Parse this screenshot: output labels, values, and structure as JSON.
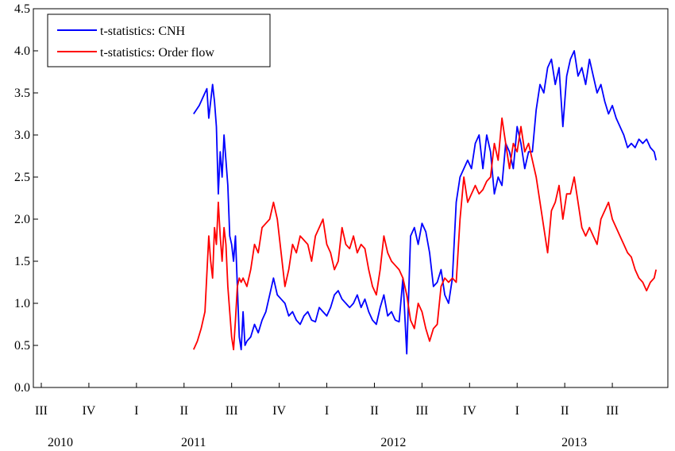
{
  "chart_data": {
    "type": "line",
    "title": "",
    "xlabel": "",
    "ylabel": "",
    "ylim": [
      0.0,
      4.5
    ],
    "yticks": [
      "0.0",
      "0.5",
      "1.0",
      "1.5",
      "2.0",
      "2.5",
      "3.0",
      "3.5",
      "4.0",
      "4.5"
    ],
    "xlim": [
      2010.5,
      2013.75
    ],
    "quarter_labels": [
      {
        "x": 2010.5,
        "label": "III"
      },
      {
        "x": 2010.75,
        "label": "IV"
      },
      {
        "x": 2011.0,
        "label": "I"
      },
      {
        "x": 2011.25,
        "label": "II"
      },
      {
        "x": 2011.5,
        "label": "III"
      },
      {
        "x": 2011.75,
        "label": "IV"
      },
      {
        "x": 2012.0,
        "label": "I"
      },
      {
        "x": 2012.25,
        "label": "II"
      },
      {
        "x": 2012.5,
        "label": "III"
      },
      {
        "x": 2012.75,
        "label": "IV"
      },
      {
        "x": 2013.0,
        "label": "I"
      },
      {
        "x": 2013.25,
        "label": "II"
      },
      {
        "x": 2013.5,
        "label": "III"
      }
    ],
    "year_labels": [
      {
        "x": 2010.6,
        "label": "2010"
      },
      {
        "x": 2011.3,
        "label": "2011"
      },
      {
        "x": 2012.35,
        "label": "2012"
      },
      {
        "x": 2013.3,
        "label": "2013"
      }
    ],
    "grid": false,
    "legend_position": "top-left",
    "series": [
      {
        "name": "t-statistics: CNH",
        "color": "#0000ff",
        "x": [
          2011.3,
          2011.33,
          2011.35,
          2011.37,
          2011.38,
          2011.4,
          2011.41,
          2011.42,
          2011.43,
          2011.44,
          2011.45,
          2011.46,
          2011.47,
          2011.48,
          2011.49,
          2011.5,
          2011.51,
          2011.52,
          2011.53,
          2011.54,
          2011.55,
          2011.56,
          2011.57,
          2011.58,
          2011.6,
          2011.62,
          2011.64,
          2011.66,
          2011.68,
          2011.7,
          2011.72,
          2011.74,
          2011.76,
          2011.78,
          2011.8,
          2011.82,
          2011.84,
          2011.86,
          2011.88,
          2011.9,
          2011.92,
          2011.94,
          2011.96,
          2011.98,
          2012.0,
          2012.02,
          2012.04,
          2012.06,
          2012.08,
          2012.1,
          2012.12,
          2012.14,
          2012.16,
          2012.18,
          2012.2,
          2012.22,
          2012.24,
          2012.26,
          2012.28,
          2012.3,
          2012.32,
          2012.34,
          2012.36,
          2012.38,
          2012.4,
          2012.42,
          2012.44,
          2012.46,
          2012.48,
          2012.5,
          2012.52,
          2012.54,
          2012.56,
          2012.58,
          2012.6,
          2012.62,
          2012.64,
          2012.66,
          2012.68,
          2012.7,
          2012.72,
          2012.74,
          2012.76,
          2012.78,
          2012.8,
          2012.82,
          2012.84,
          2012.86,
          2012.88,
          2012.9,
          2012.92,
          2012.94,
          2012.96,
          2012.98,
          2013.0,
          2013.02,
          2013.04,
          2013.06,
          2013.08,
          2013.1,
          2013.12,
          2013.14,
          2013.16,
          2013.18,
          2013.2,
          2013.22,
          2013.24,
          2013.26,
          2013.28,
          2013.3,
          2013.32,
          2013.34,
          2013.36,
          2013.38,
          2013.4,
          2013.42,
          2013.44,
          2013.46,
          2013.48,
          2013.5,
          2013.52,
          2013.54,
          2013.56,
          2013.58,
          2013.6,
          2013.62,
          2013.64,
          2013.66,
          2013.68,
          2013.7,
          2013.72,
          2013.73
        ],
        "y": [
          3.25,
          3.35,
          3.45,
          3.55,
          3.2,
          3.6,
          3.4,
          3.1,
          2.3,
          2.8,
          2.5,
          3.0,
          2.7,
          2.4,
          1.8,
          1.7,
          1.5,
          1.8,
          1.2,
          0.6,
          0.45,
          0.9,
          0.5,
          0.55,
          0.6,
          0.75,
          0.65,
          0.8,
          0.9,
          1.1,
          1.3,
          1.1,
          1.05,
          1.0,
          0.85,
          0.9,
          0.8,
          0.75,
          0.85,
          0.9,
          0.8,
          0.78,
          0.95,
          0.9,
          0.85,
          0.95,
          1.1,
          1.15,
          1.05,
          1.0,
          0.95,
          1.0,
          1.1,
          0.95,
          1.05,
          0.9,
          0.8,
          0.75,
          0.95,
          1.1,
          0.85,
          0.9,
          0.8,
          0.78,
          1.3,
          0.4,
          1.8,
          1.9,
          1.7,
          1.95,
          1.85,
          1.6,
          1.2,
          1.25,
          1.4,
          1.1,
          1.0,
          1.3,
          2.2,
          2.5,
          2.6,
          2.7,
          2.6,
          2.9,
          3.0,
          2.6,
          3.0,
          2.8,
          2.3,
          2.5,
          2.4,
          2.9,
          2.8,
          2.6,
          3.1,
          2.9,
          2.6,
          2.8,
          2.8,
          3.3,
          3.6,
          3.5,
          3.8,
          3.9,
          3.6,
          3.8,
          3.1,
          3.7,
          3.9,
          4.0,
          3.7,
          3.8,
          3.6,
          3.9,
          3.7,
          3.5,
          3.6,
          3.4,
          3.25,
          3.35,
          3.2,
          3.1,
          3.0,
          2.85,
          2.9,
          2.85,
          2.95,
          2.9,
          2.95,
          2.85,
          2.8,
          2.7
        ]
      },
      {
        "name": "t-statistics: Order flow",
        "color": "#ff0000",
        "x": [
          2011.3,
          2011.32,
          2011.34,
          2011.36,
          2011.38,
          2011.39,
          2011.4,
          2011.41,
          2011.42,
          2011.43,
          2011.44,
          2011.45,
          2011.46,
          2011.47,
          2011.48,
          2011.49,
          2011.5,
          2011.51,
          2011.52,
          2011.53,
          2011.54,
          2011.55,
          2011.56,
          2011.58,
          2011.6,
          2011.62,
          2011.64,
          2011.66,
          2011.68,
          2011.7,
          2011.72,
          2011.74,
          2011.76,
          2011.78,
          2011.8,
          2011.82,
          2011.84,
          2011.86,
          2011.88,
          2011.9,
          2011.92,
          2011.94,
          2011.96,
          2011.98,
          2012.0,
          2012.02,
          2012.04,
          2012.06,
          2012.08,
          2012.1,
          2012.12,
          2012.14,
          2012.16,
          2012.18,
          2012.2,
          2012.22,
          2012.24,
          2012.26,
          2012.28,
          2012.3,
          2012.32,
          2012.34,
          2012.36,
          2012.38,
          2012.4,
          2012.42,
          2012.44,
          2012.46,
          2012.48,
          2012.5,
          2012.52,
          2012.54,
          2012.56,
          2012.58,
          2012.6,
          2012.62,
          2012.64,
          2012.66,
          2012.68,
          2012.7,
          2012.72,
          2012.74,
          2012.76,
          2012.78,
          2012.8,
          2012.82,
          2012.84,
          2012.86,
          2012.88,
          2012.9,
          2012.92,
          2012.94,
          2012.96,
          2012.98,
          2013.0,
          2013.02,
          2013.04,
          2013.06,
          2013.08,
          2013.1,
          2013.12,
          2013.14,
          2013.16,
          2013.18,
          2013.2,
          2013.22,
          2013.24,
          2013.26,
          2013.28,
          2013.3,
          2013.32,
          2013.34,
          2013.36,
          2013.38,
          2013.4,
          2013.42,
          2013.44,
          2013.46,
          2013.48,
          2013.5,
          2013.52,
          2013.54,
          2013.56,
          2013.58,
          2013.6,
          2013.62,
          2013.64,
          2013.66,
          2013.68,
          2013.7,
          2013.72,
          2013.73
        ],
        "y": [
          0.45,
          0.55,
          0.7,
          0.9,
          1.8,
          1.5,
          1.3,
          1.9,
          1.7,
          2.2,
          1.8,
          1.5,
          1.9,
          1.7,
          1.2,
          0.9,
          0.6,
          0.45,
          0.8,
          1.2,
          1.3,
          1.25,
          1.3,
          1.2,
          1.4,
          1.7,
          1.6,
          1.9,
          1.95,
          2.0,
          2.2,
          2.0,
          1.6,
          1.2,
          1.4,
          1.7,
          1.6,
          1.8,
          1.75,
          1.7,
          1.5,
          1.8,
          1.9,
          2.0,
          1.7,
          1.6,
          1.4,
          1.5,
          1.9,
          1.7,
          1.65,
          1.8,
          1.6,
          1.7,
          1.65,
          1.4,
          1.2,
          1.1,
          1.4,
          1.8,
          1.6,
          1.5,
          1.45,
          1.4,
          1.3,
          1.1,
          0.8,
          0.7,
          1.0,
          0.9,
          0.7,
          0.55,
          0.7,
          0.75,
          1.2,
          1.3,
          1.25,
          1.3,
          1.25,
          2.0,
          2.5,
          2.2,
          2.3,
          2.4,
          2.3,
          2.35,
          2.45,
          2.5,
          2.9,
          2.7,
          3.2,
          2.9,
          2.6,
          2.9,
          2.8,
          3.1,
          2.8,
          2.9,
          2.7,
          2.5,
          2.2,
          1.9,
          1.6,
          2.1,
          2.2,
          2.4,
          2.0,
          2.3,
          2.3,
          2.5,
          2.2,
          1.9,
          1.8,
          1.9,
          1.8,
          1.7,
          2.0,
          2.1,
          2.2,
          2.0,
          1.9,
          1.8,
          1.7,
          1.6,
          1.55,
          1.4,
          1.3,
          1.25,
          1.15,
          1.25,
          1.3,
          1.4
        ]
      }
    ]
  }
}
